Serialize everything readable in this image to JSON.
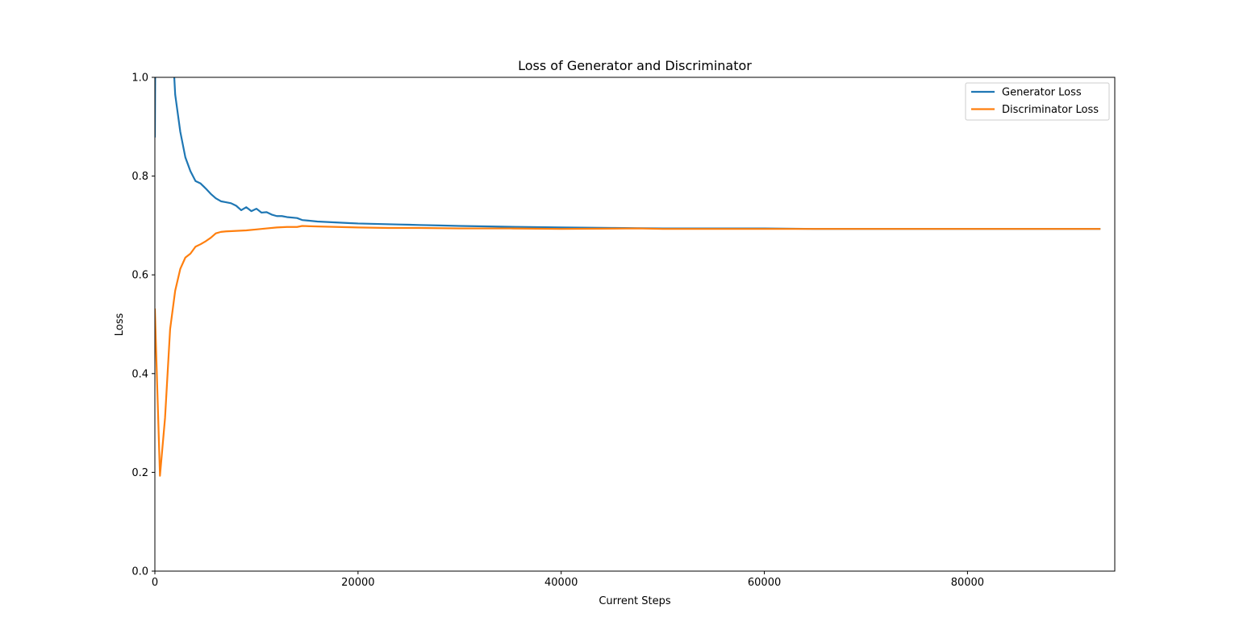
{
  "chart_data": {
    "type": "line",
    "title": "Loss of Generator and Discriminator",
    "xlabel": "Current Steps",
    "ylabel": "Loss",
    "xlim": [
      0,
      94500
    ],
    "ylim": [
      0,
      1.0
    ],
    "xticks": [
      0,
      20000,
      40000,
      60000,
      80000
    ],
    "yticks": [
      0.0,
      0.2,
      0.4,
      0.6,
      0.8,
      1.0
    ],
    "grid": false,
    "legend_position": "top-right",
    "series": [
      {
        "name": "Generator Loss",
        "color": "#1f77b4",
        "points": [
          [
            0,
            0.88
          ],
          [
            150,
            1.5
          ],
          [
            1700,
            1.08
          ],
          [
            2000,
            0.965
          ],
          [
            2500,
            0.89
          ],
          [
            3000,
            0.838
          ],
          [
            3500,
            0.81
          ],
          [
            4000,
            0.79
          ],
          [
            4500,
            0.785
          ],
          [
            5000,
            0.775
          ],
          [
            5500,
            0.764
          ],
          [
            6000,
            0.755
          ],
          [
            6500,
            0.749
          ],
          [
            7000,
            0.747
          ],
          [
            7500,
            0.745
          ],
          [
            8000,
            0.74
          ],
          [
            8500,
            0.731
          ],
          [
            9000,
            0.737
          ],
          [
            9500,
            0.729
          ],
          [
            10000,
            0.734
          ],
          [
            10500,
            0.726
          ],
          [
            11000,
            0.727
          ],
          [
            11500,
            0.722
          ],
          [
            12000,
            0.719
          ],
          [
            12500,
            0.719
          ],
          [
            13000,
            0.717
          ],
          [
            14000,
            0.715
          ],
          [
            14500,
            0.711
          ],
          [
            15000,
            0.71
          ],
          [
            16000,
            0.708
          ],
          [
            17000,
            0.707
          ],
          [
            18000,
            0.706
          ],
          [
            19000,
            0.705
          ],
          [
            20000,
            0.704
          ],
          [
            22000,
            0.703
          ],
          [
            24000,
            0.702
          ],
          [
            26000,
            0.701
          ],
          [
            28000,
            0.7
          ],
          [
            30000,
            0.699
          ],
          [
            33000,
            0.698
          ],
          [
            36000,
            0.697
          ],
          [
            40000,
            0.696
          ],
          [
            45000,
            0.695
          ],
          [
            50000,
            0.694
          ],
          [
            55000,
            0.694
          ],
          [
            60000,
            0.694
          ],
          [
            65000,
            0.693
          ],
          [
            70000,
            0.693
          ],
          [
            75000,
            0.693
          ],
          [
            80000,
            0.693
          ],
          [
            85000,
            0.693
          ],
          [
            93000,
            0.693
          ]
        ]
      },
      {
        "name": "Discriminator Loss",
        "color": "#ff7f0e",
        "points": [
          [
            0,
            0.53
          ],
          [
            500,
            0.193
          ],
          [
            1000,
            0.31
          ],
          [
            1500,
            0.49
          ],
          [
            2000,
            0.568
          ],
          [
            2500,
            0.612
          ],
          [
            3000,
            0.635
          ],
          [
            3500,
            0.643
          ],
          [
            4000,
            0.657
          ],
          [
            4500,
            0.662
          ],
          [
            5000,
            0.668
          ],
          [
            5500,
            0.675
          ],
          [
            6000,
            0.684
          ],
          [
            6500,
            0.687
          ],
          [
            7000,
            0.688
          ],
          [
            8000,
            0.689
          ],
          [
            9000,
            0.69
          ],
          [
            10000,
            0.692
          ],
          [
            11000,
            0.694
          ],
          [
            12000,
            0.696
          ],
          [
            13000,
            0.697
          ],
          [
            14000,
            0.697
          ],
          [
            14500,
            0.699
          ],
          [
            16000,
            0.698
          ],
          [
            18000,
            0.697
          ],
          [
            20000,
            0.696
          ],
          [
            23000,
            0.695
          ],
          [
            26000,
            0.695
          ],
          [
            30000,
            0.694
          ],
          [
            35000,
            0.694
          ],
          [
            40000,
            0.693
          ],
          [
            47500,
            0.694
          ],
          [
            50000,
            0.693
          ],
          [
            55000,
            0.693
          ],
          [
            60000,
            0.693
          ],
          [
            65000,
            0.693
          ],
          [
            70000,
            0.693
          ],
          [
            75000,
            0.693
          ],
          [
            80000,
            0.693
          ],
          [
            85000,
            0.693
          ],
          [
            93000,
            0.693
          ]
        ]
      }
    ]
  }
}
